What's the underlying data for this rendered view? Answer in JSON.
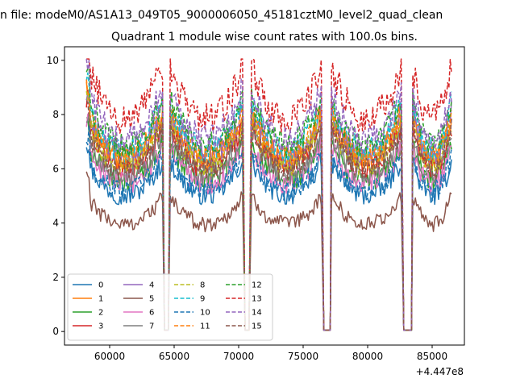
{
  "suptitle": "n file: modeM0/AS1A13_049T05_9000006050_45181cztM0_level2_quad_clean",
  "chart_data": {
    "type": "line",
    "title": "Quadrant 1 module wise count rates with 100.0s bins.",
    "xlabel": "",
    "ylabel": "",
    "x_offset_label": "+4.447e8",
    "xlim": [
      56500,
      87500
    ],
    "ylim": [
      -0.5,
      10.5
    ],
    "xticks": [
      60000,
      65000,
      70000,
      75000,
      80000,
      85000
    ],
    "xtick_labels": [
      "60000",
      "65000",
      "70000",
      "75000",
      "80000",
      "85000"
    ],
    "yticks": [
      0,
      2,
      4,
      6,
      8,
      10
    ],
    "ytick_labels": [
      "0",
      "2",
      "4",
      "6",
      "8",
      "10"
    ],
    "bin_seconds": 100,
    "segments": [
      [
        58200,
        64100
      ],
      [
        64700,
        70300
      ],
      [
        71000,
        76400
      ],
      [
        77200,
        82600
      ],
      [
        83500,
        86500
      ]
    ],
    "gaps_at_zero": [
      [
        64250,
        64550
      ],
      [
        70500,
        70800
      ],
      [
        76600,
        77100
      ],
      [
        82800,
        83400
      ]
    ],
    "legend_columns": 4,
    "series": [
      {
        "name": "0",
        "level": 5.7,
        "color": "#1f77b4",
        "dash": "solid"
      },
      {
        "name": "1",
        "level": 7.2,
        "color": "#ff7f0e",
        "dash": "solid"
      },
      {
        "name": "2",
        "level": 6.3,
        "color": "#2ca02c",
        "dash": "solid"
      },
      {
        "name": "3",
        "level": 6.9,
        "color": "#d62728",
        "dash": "solid"
      },
      {
        "name": "4",
        "level": 7.4,
        "color": "#9467bd",
        "dash": "solid"
      },
      {
        "name": "5",
        "level": 4.5,
        "color": "#8c564b",
        "dash": "solid"
      },
      {
        "name": "6",
        "level": 6.2,
        "color": "#e377c2",
        "dash": "solid"
      },
      {
        "name": "7",
        "level": 6.6,
        "color": "#7f7f7f",
        "dash": "solid"
      },
      {
        "name": "8",
        "level": 7.0,
        "color": "#bcbd22",
        "dash": "dashed"
      },
      {
        "name": "9",
        "level": 7.6,
        "color": "#17becf",
        "dash": "dashed"
      },
      {
        "name": "10",
        "level": 5.9,
        "color": "#1f77b4",
        "dash": "dashed"
      },
      {
        "name": "11",
        "level": 7.3,
        "color": "#ff7f0e",
        "dash": "dashed"
      },
      {
        "name": "12",
        "level": 7.8,
        "color": "#2ca02c",
        "dash": "dashed"
      },
      {
        "name": "13",
        "level": 8.9,
        "color": "#d62728",
        "dash": "dashed"
      },
      {
        "name": "14",
        "level": 8.1,
        "color": "#9467bd",
        "dash": "dashed"
      },
      {
        "name": "15",
        "level": 6.8,
        "color": "#8c564b",
        "dash": "dashed"
      }
    ]
  }
}
